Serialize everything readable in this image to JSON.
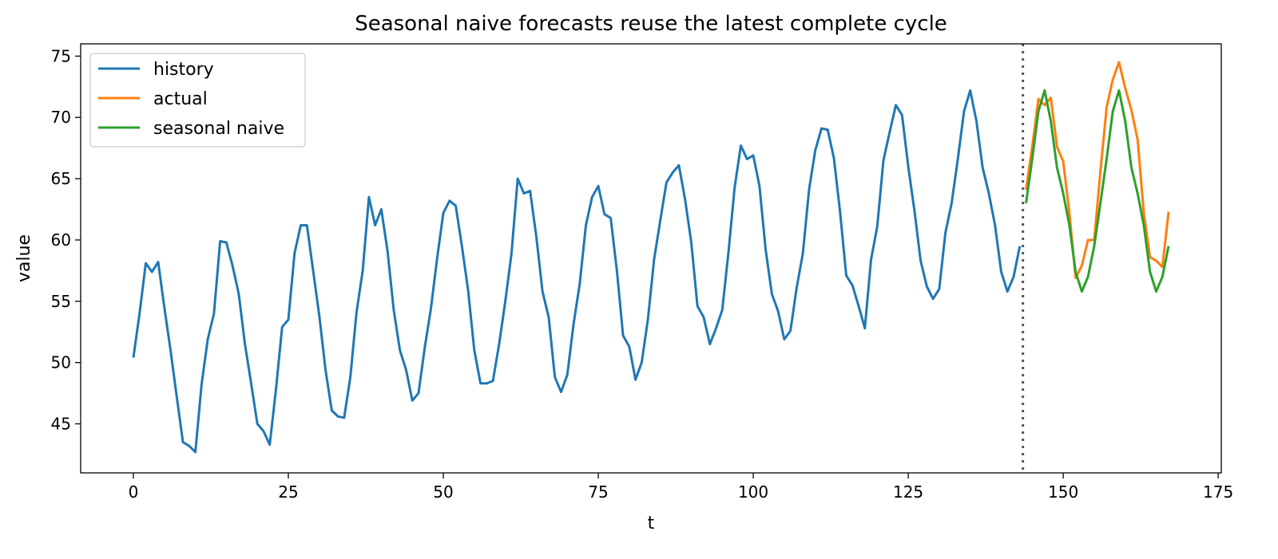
{
  "chart_data": {
    "type": "line",
    "title": "Seasonal naive forecasts reuse the latest complete cycle",
    "xlabel": "t",
    "ylabel": "value",
    "xlim": [
      -8.5,
      175.5
    ],
    "ylim": [
      41,
      76
    ],
    "xticks": [
      0,
      25,
      50,
      75,
      100,
      125,
      150,
      175
    ],
    "yticks": [
      45,
      50,
      55,
      60,
      65,
      70,
      75
    ],
    "grid": false,
    "legend_position": "top-left",
    "forecast_origin": 143.5,
    "series": [
      {
        "name": "history",
        "color": "#1f77b4",
        "x_start": 0,
        "values": [
          50.4,
          54.0,
          58.1,
          57.4,
          58.2,
          54.5,
          51.0,
          47.2,
          43.5,
          43.2,
          42.7,
          48.2,
          51.9,
          54.0,
          59.9,
          59.8,
          57.9,
          55.6,
          51.5,
          48.3,
          45.0,
          44.4,
          43.3,
          47.8,
          52.9,
          53.5,
          58.9,
          61.2,
          61.2,
          57.5,
          53.8,
          49.4,
          46.1,
          45.6,
          45.5,
          48.8,
          54.1,
          57.5,
          63.5,
          61.2,
          62.5,
          59.1,
          54.3,
          51.0,
          49.4,
          46.9,
          47.5,
          51.2,
          54.4,
          58.5,
          62.2,
          63.2,
          62.8,
          59.5,
          55.9,
          51.0,
          48.3,
          48.3,
          48.5,
          51.5,
          55.0,
          58.9,
          65.0,
          63.8,
          64.0,
          60.3,
          55.8,
          53.7,
          48.8,
          47.6,
          49.0,
          53.1,
          56.4,
          61.2,
          63.5,
          64.4,
          62.1,
          61.8,
          57.5,
          52.2,
          51.3,
          48.6,
          50.0,
          53.5,
          58.4,
          61.6,
          64.7,
          65.5,
          66.1,
          63.3,
          59.8,
          54.6,
          53.7,
          51.5,
          52.8,
          54.3,
          59.0,
          64.3,
          67.7,
          66.6,
          66.9,
          64.4,
          59.2,
          55.6,
          54.2,
          51.9,
          52.6,
          56.1,
          58.9,
          64.1,
          67.3,
          69.1,
          69.0,
          66.7,
          62.3,
          57.1,
          56.3,
          54.6,
          52.8,
          58.4,
          61.1,
          66.5,
          68.8,
          71.0,
          70.2,
          66.0,
          62.4,
          58.3,
          56.2,
          55.2,
          56.0,
          60.6,
          63.0,
          66.6,
          70.5,
          72.2,
          69.7,
          65.9,
          63.8,
          61.2,
          57.4,
          55.8,
          57.0,
          59.5
        ]
      },
      {
        "name": "actual",
        "color": "#ff7f0e",
        "x_start": 144,
        "values": [
          64.1,
          67.6,
          71.5,
          71.0,
          71.6,
          67.6,
          66.4,
          62.2,
          56.9,
          57.9,
          60.0,
          60.0,
          65.6,
          70.8,
          73.1,
          74.5,
          72.4,
          70.6,
          68.2,
          62.2,
          58.6,
          58.3,
          57.8,
          62.3
        ]
      },
      {
        "name": "seasonal naive",
        "color": "#2ca02c",
        "x_start": 144,
        "values": [
          63.0,
          66.6,
          70.5,
          72.2,
          69.7,
          65.9,
          63.8,
          61.2,
          57.4,
          55.8,
          57.0,
          59.5,
          63.0,
          66.6,
          70.5,
          72.2,
          69.7,
          65.9,
          63.8,
          61.2,
          57.4,
          55.8,
          57.0,
          59.5
        ]
      }
    ]
  }
}
